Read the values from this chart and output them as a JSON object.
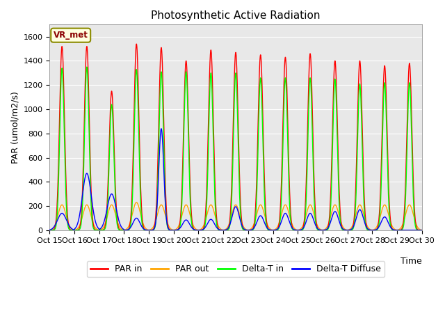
{
  "title": "Photosynthetic Active Radiation",
  "ylabel": "PAR (umol/m2/s)",
  "xlabel": "Time",
  "annotation": "VR_met",
  "legend": [
    "PAR in",
    "PAR out",
    "Delta-T in",
    "Delta-T Diffuse"
  ],
  "colors": [
    "red",
    "orange",
    "lime",
    "blue"
  ],
  "ylim": [
    0,
    1700
  ],
  "bg_color": "#e8e8e8",
  "xtick_labels": [
    "Oct 15",
    "Oct 16",
    "Oct 17",
    "Oct 18",
    "Oct 19",
    "Oct 20",
    "Oct 21",
    "Oct 22",
    "Oct 23",
    "Oct 24",
    "Oct 25",
    "Oct 26",
    "Oct 27",
    "Oct 28",
    "Oct 29",
    "Oct 30"
  ],
  "num_days": 15,
  "figsize": [
    6.4,
    4.8
  ],
  "dpi": 100,
  "par_in_peaks": [
    1520,
    1520,
    1150,
    1540,
    1510,
    1400,
    1490,
    1470,
    1450,
    1430,
    1460,
    1400,
    1400,
    1360,
    1380
  ],
  "par_out_peaks": [
    210,
    210,
    210,
    230,
    210,
    210,
    210,
    210,
    210,
    210,
    210,
    210,
    210,
    210,
    210
  ],
  "delta_t_peaks": [
    1340,
    1350,
    1040,
    1330,
    1310,
    1310,
    1300,
    1300,
    1260,
    1260,
    1260,
    1250,
    1210,
    1220,
    1220
  ],
  "delta_diff_peaks": [
    140,
    470,
    300,
    100,
    840,
    85,
    90,
    195,
    120,
    140,
    140,
    155,
    170,
    110,
    0
  ],
  "delta_diff_widths": [
    0.18,
    0.18,
    0.18,
    0.14,
    0.1,
    0.14,
    0.14,
    0.14,
    0.14,
    0.14,
    0.14,
    0.14,
    0.14,
    0.14,
    0.14
  ]
}
